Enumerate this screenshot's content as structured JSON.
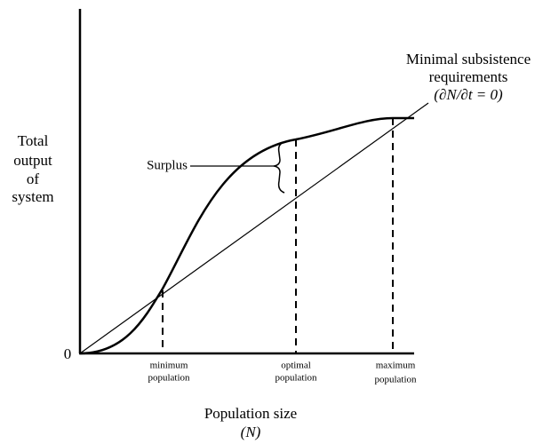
{
  "diagram": {
    "y_axis_label": [
      "Total",
      "output",
      "of",
      "system"
    ],
    "origin_label": "0",
    "line_label": [
      "Minimal subsistence",
      "requirements",
      "(∂N/∂t = 0)"
    ],
    "surplus_label": "Surplus",
    "markers": [
      {
        "lines": [
          "minimum",
          "population"
        ]
      },
      {
        "lines": [
          "optimal",
          "population"
        ]
      },
      {
        "lines": [
          "maximum",
          "population"
        ]
      }
    ],
    "x_axis_label": [
      "Population size",
      "(N)"
    ]
  }
}
